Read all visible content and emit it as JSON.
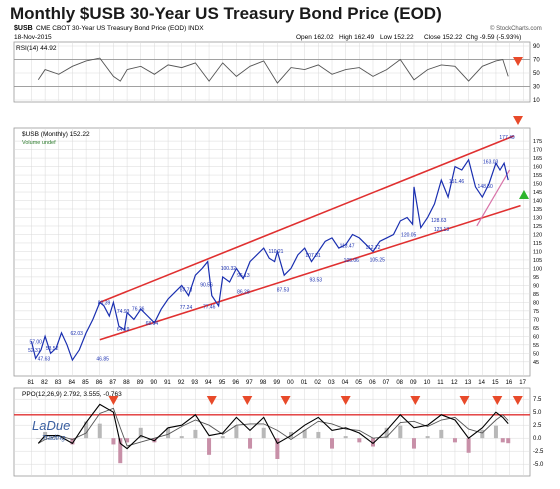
{
  "title": "Monthly $USB 30-Year US Treasury Bond Price (EOD)",
  "header": {
    "symbol": "$USB",
    "description": "CME CBOT 30-Year US Treasury Bond Price (EOD) INDX",
    "date": "18-Nov-2015",
    "open": "Open 162.02",
    "high": "High 162.49",
    "low": "Low 152.22",
    "close": "Close 152.22",
    "change": "Chg -9.59 (-5.93%)",
    "source": "© StockCharts.com"
  },
  "colors": {
    "price": "#1a2fb0",
    "channel": "#e03030",
    "arrow_down": "#e84a2a",
    "arrow_up": "#2db52d",
    "grid": "#d9d9d9",
    "hist_pos": "#b8b8b8",
    "hist_neg": "#c890a8"
  },
  "chart_data": [
    {
      "type": "line",
      "panel": "RSI",
      "legend": "RSI(14) 44.92",
      "y_ticks": [
        90,
        70,
        50,
        30,
        10
      ],
      "ylim": [
        10,
        90
      ],
      "ref_lines": [
        70,
        30
      ],
      "x": [
        1981.5,
        1982,
        1983,
        1984,
        1985,
        1986,
        1987,
        1987.5,
        1988,
        1989,
        1990,
        1991,
        1992,
        1993,
        1994,
        1995,
        1996,
        1997,
        1998,
        1999,
        2000,
        2001,
        2002,
        2003,
        2004,
        2005,
        2006,
        2007,
        2008,
        2009,
        2010,
        2011,
        2012,
        2013,
        2014,
        2015,
        2015.5,
        2015.9
      ],
      "values": [
        40,
        55,
        48,
        60,
        68,
        72,
        45,
        38,
        55,
        60,
        48,
        62,
        58,
        65,
        38,
        65,
        45,
        60,
        68,
        35,
        58,
        55,
        62,
        48,
        55,
        58,
        45,
        55,
        70,
        40,
        55,
        62,
        60,
        38,
        60,
        68,
        70,
        45
      ]
    },
    {
      "type": "line",
      "panel": "Price",
      "legend": "$USB (Monthly) 152.22",
      "legend2": "Volume undef",
      "y_ticks": [
        175,
        170,
        165,
        160,
        155,
        150,
        145,
        140,
        135,
        130,
        125,
        120,
        115,
        110,
        105,
        100,
        95,
        90,
        85,
        80,
        75,
        70,
        65,
        60,
        55,
        50,
        45
      ],
      "ylim": [
        39,
        178
      ],
      "x_ticks": [
        "81",
        "82",
        "83",
        "84",
        "85",
        "86",
        "87",
        "88",
        "89",
        "90",
        "91",
        "92",
        "93",
        "94",
        "95",
        "96",
        "97",
        "98",
        "99",
        "00",
        "01",
        "02",
        "03",
        "04",
        "05",
        "06",
        "07",
        "08",
        "09",
        "10",
        "11",
        "12",
        "13",
        "14",
        "15",
        "16",
        "17"
      ],
      "labels": [
        "57.00",
        "52.31",
        "47.63",
        "53.52",
        "62.03",
        "46.85",
        "80.39",
        "74.93",
        "64.19",
        "76.36",
        "68.04",
        "87.73",
        "90.56",
        "77.24",
        "100.32",
        "96.13",
        "77.46",
        "86.28",
        "110.21",
        "87.53",
        "107.81",
        "93.53",
        "113.47",
        "105.06",
        "112.72",
        "105.25",
        "120.05",
        "128.63",
        "151.46",
        "123.13",
        "163.03",
        "148.50",
        "177.49"
      ],
      "x": [
        1981,
        1981.3,
        1981.7,
        1982,
        1982.4,
        1982.8,
        1983.2,
        1983.6,
        1984,
        1984.5,
        1985,
        1985.5,
        1986,
        1986.3,
        1986.7,
        1987,
        1987.4,
        1987.8,
        1988,
        1988.5,
        1989,
        1989.5,
        1990,
        1990.5,
        1991,
        1991.5,
        1992,
        1992.5,
        1993,
        1993.5,
        1993.9,
        1994.2,
        1994.7,
        1995,
        1995.5,
        1996,
        1996.5,
        1997,
        1997.5,
        1998,
        1998.4,
        1998.8,
        1999,
        1999.5,
        2000,
        2000.5,
        2001,
        2001.5,
        2002,
        2002.5,
        2003,
        2003.5,
        2004,
        2004.5,
        2005,
        2005.5,
        2006,
        2006.5,
        2007,
        2007.5,
        2008,
        2008.5,
        2008.9,
        2009,
        2009.5,
        2010,
        2010.5,
        2011,
        2011.5,
        2012,
        2012.5,
        2013,
        2013.5,
        2014,
        2014.5,
        2015,
        2015.3,
        2015.6,
        2015.9
      ],
      "values": [
        57,
        47,
        52,
        60,
        50,
        53,
        62,
        55,
        46,
        52,
        62,
        70,
        80,
        78,
        72,
        80,
        66,
        64,
        74,
        70,
        76,
        72,
        68,
        76,
        82,
        86,
        90,
        84,
        96,
        100,
        104,
        84,
        78,
        95,
        92,
        100,
        94,
        104,
        108,
        112,
        106,
        104,
        110,
        96,
        100,
        108,
        112,
        104,
        110,
        116,
        118,
        112,
        114,
        120,
        118,
        114,
        110,
        116,
        118,
        120,
        128,
        130,
        126,
        148,
        124,
        130,
        138,
        152,
        142,
        160,
        158,
        164,
        148,
        142,
        150,
        162,
        158,
        162,
        152
      ]
    },
    {
      "type": "line",
      "panel": "PPO",
      "legend": "PPO(12,26,9) 2.792, 3.555, -0.763",
      "y_ticks": [
        7.5,
        5.0,
        2.5,
        0.0,
        -2.5,
        -5.0
      ],
      "ylim": [
        -6.5,
        8.5
      ],
      "ref_lines": [
        4.5
      ],
      "series": [
        {
          "x": [
            1981.5,
            1982,
            1983,
            1984,
            1985,
            1986,
            1987,
            1987.5,
            1988,
            1989,
            1990,
            1991,
            1992,
            1993,
            1994,
            1995,
            1996,
            1997,
            1998,
            1999,
            2000,
            2001,
            2002,
            2003,
            2004,
            2005,
            2006,
            2007,
            2008,
            2009,
            2010,
            2011,
            2012,
            2013,
            2014,
            2015,
            2015.5,
            2015.9
          ],
          "values": [
            -1,
            0.5,
            0.5,
            -1,
            3,
            6.5,
            5,
            -1,
            -2,
            0.5,
            -0.5,
            2,
            2.5,
            4.5,
            0.5,
            1,
            4,
            1.5,
            4,
            -1,
            0.5,
            2.5,
            4,
            1.5,
            2,
            1,
            -1,
            1.5,
            4.5,
            2,
            2.5,
            4.5,
            3.5,
            0,
            2,
            5,
            4,
            2.8
          ]
        }
      ]
    }
  ],
  "watermark": {
    "line1": "LaDue",
    "line2": "Trading"
  }
}
